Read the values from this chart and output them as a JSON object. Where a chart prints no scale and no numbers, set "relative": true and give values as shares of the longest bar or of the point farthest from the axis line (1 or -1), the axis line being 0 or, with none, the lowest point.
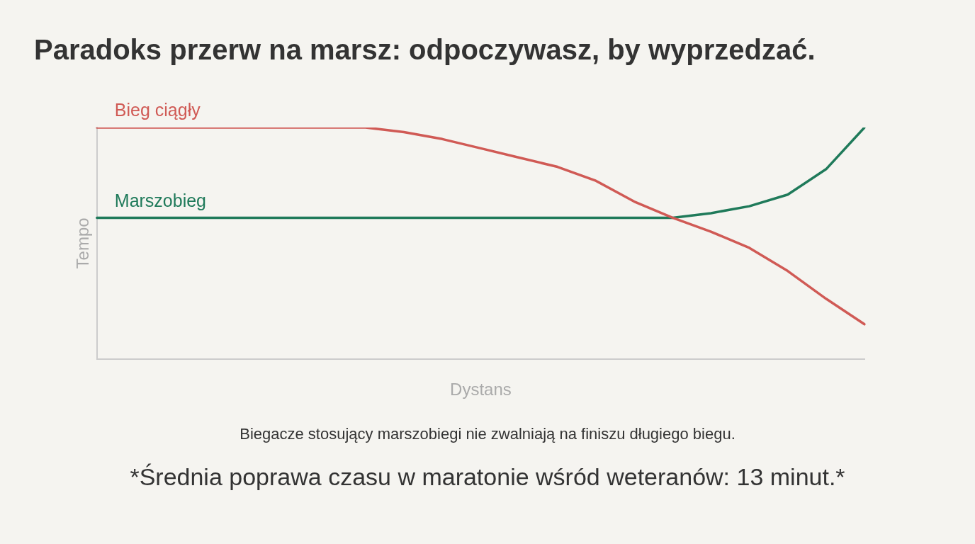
{
  "chart_data": {
    "type": "line",
    "title": "Paradoks przerw na marsz: odpoczywasz, by wyprzedzać.",
    "xlabel": "Dystans",
    "ylabel": "Tempo",
    "relative": true,
    "legend": false,
    "grid": false,
    "marker": "none",
    "line_style": "solid",
    "categories": [
      null,
      null,
      null,
      null,
      null,
      null,
      null,
      null,
      null,
      null,
      null,
      null,
      null,
      null,
      null,
      null,
      null,
      null,
      null,
      null,
      null
    ],
    "series": [
      {
        "name": "Bieg ciągły",
        "color": "#d05a55",
        "values": [
          1,
          1,
          1,
          1,
          1,
          1,
          1,
          1,
          0.98,
          0.95,
          0.91,
          0.87,
          0.83,
          0.77,
          0.68,
          0.61,
          0.55,
          0.48,
          0.38,
          0.26,
          0.15
        ]
      },
      {
        "name": "Marszobieg",
        "color": "#1f7a5a",
        "values": [
          0.61,
          0.61,
          0.61,
          0.61,
          0.61,
          0.61,
          0.61,
          0.61,
          0.61,
          0.61,
          0.61,
          0.61,
          0.61,
          0.61,
          0.61,
          0.61,
          0.63,
          0.66,
          0.71,
          0.82,
          1
        ]
      }
    ],
    "annotations": [
      "Biegacze stosujący marszobiegi nie zwalniają na finiszu długiego biegu.",
      "*Średnia poprawa czasu w maratonie wśród weteranów: 13 minut.*"
    ]
  }
}
